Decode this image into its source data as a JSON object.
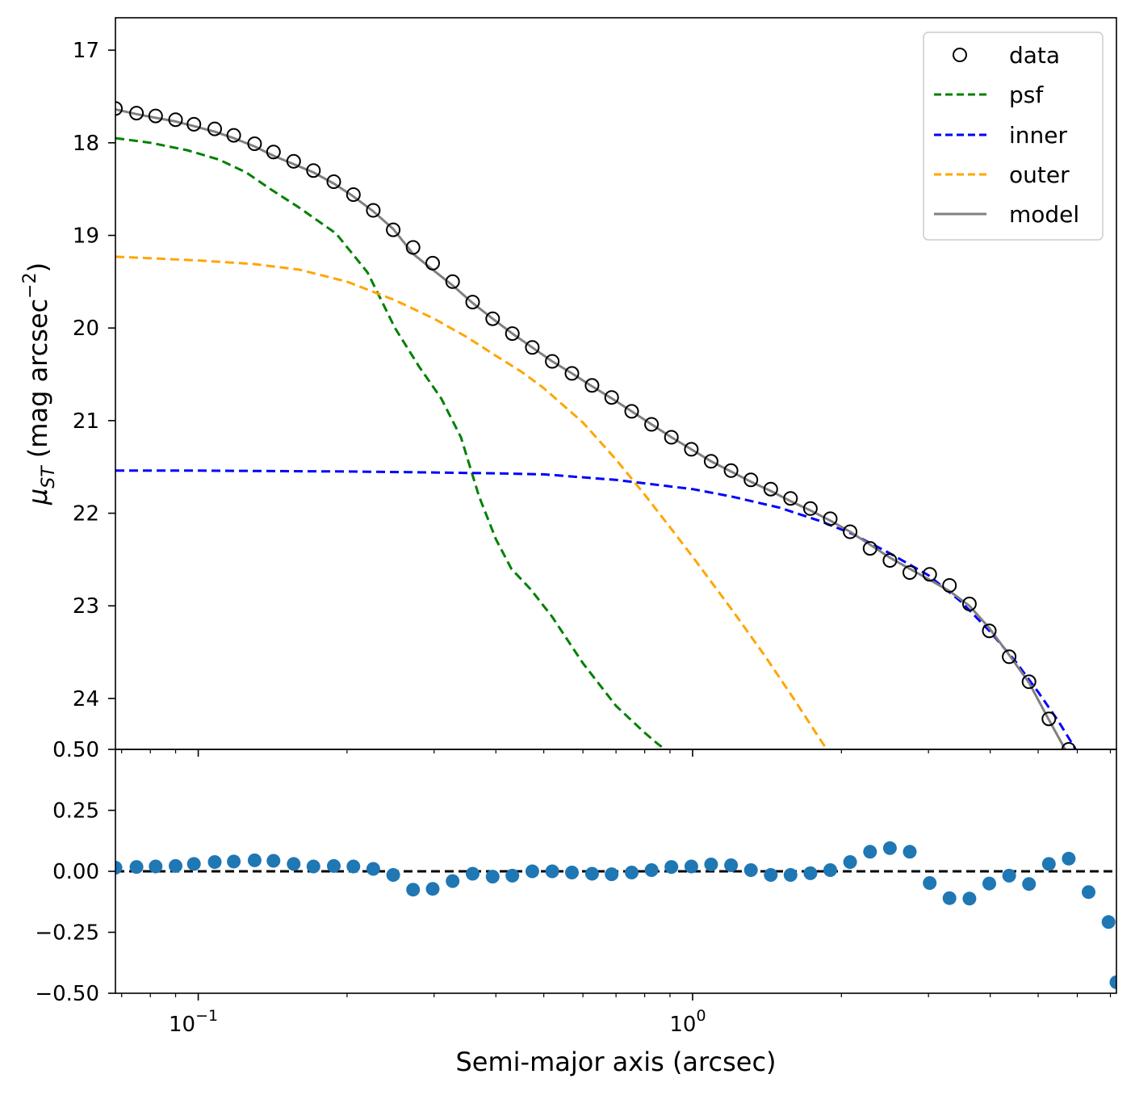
{
  "chart_data": [
    {
      "type": "line",
      "panel": "profile",
      "xscale": "log",
      "xlim": [
        0.068,
        7.2
      ],
      "ylim": [
        24.55,
        16.65
      ],
      "yticks": [
        17,
        18,
        19,
        20,
        21,
        22,
        23,
        24
      ],
      "yticks_labels": [
        "17",
        "18",
        "19",
        "20",
        "21",
        "22",
        "23",
        "24"
      ],
      "ylabel_main": "μ",
      "ylabel_sub": "ST",
      "ylabel_rest": " (mag arcsec",
      "ylabel_sup": "−2",
      "ylabel_close": ")",
      "legend_position": "top-right",
      "series": [
        {
          "name": "data",
          "label": "data",
          "style": "open-circles",
          "color": "#000000",
          "x": [
            0.068,
            0.075,
            0.082,
            0.09,
            0.098,
            0.108,
            0.118,
            0.13,
            0.142,
            0.156,
            0.171,
            0.188,
            0.206,
            0.226,
            0.248,
            0.272,
            0.298,
            0.327,
            0.359,
            0.394,
            0.432,
            0.474,
            0.52,
            0.57,
            0.626,
            0.686,
            0.753,
            0.826,
            0.906,
            0.994,
            1.09,
            1.196,
            1.312,
            1.439,
            1.578,
            1.731,
            1.899,
            2.083,
            2.285,
            2.507,
            2.75,
            3.017,
            3.309,
            3.63,
            3.982,
            4.368,
            4.792,
            5.256,
            5.766
          ],
          "y": [
            17.63,
            17.68,
            17.71,
            17.75,
            17.8,
            17.85,
            17.92,
            18.01,
            18.1,
            18.2,
            18.3,
            18.42,
            18.56,
            18.73,
            18.94,
            19.13,
            19.3,
            19.5,
            19.72,
            19.9,
            20.06,
            20.21,
            20.36,
            20.49,
            20.62,
            20.75,
            20.9,
            21.04,
            21.18,
            21.31,
            21.44,
            21.54,
            21.64,
            21.74,
            21.84,
            21.95,
            22.06,
            22.2,
            22.38,
            22.51,
            22.64,
            22.66,
            22.78,
            22.98,
            23.27,
            23.55,
            23.82,
            24.22,
            24.55
          ]
        },
        {
          "name": "psf",
          "label": "psf",
          "style": "dashed",
          "color": "#008000",
          "x": [
            0.068,
            0.08,
            0.095,
            0.11,
            0.125,
            0.14,
            0.16,
            0.19,
            0.22,
            0.25,
            0.28,
            0.31,
            0.34,
            0.37,
            0.4,
            0.43,
            0.47,
            0.52,
            0.6,
            0.7,
            0.8,
            0.85,
            0.9,
            0.94
          ],
          "y": [
            17.95,
            18.0,
            18.08,
            18.18,
            18.32,
            18.5,
            18.7,
            18.98,
            19.4,
            20.0,
            20.42,
            20.76,
            21.18,
            21.82,
            22.28,
            22.6,
            22.82,
            23.12,
            23.62,
            24.08,
            24.37,
            24.49,
            24.59,
            24.65
          ]
        },
        {
          "name": "inner",
          "label": "inner",
          "style": "dashed",
          "color": "#0000ff",
          "x": [
            0.068,
            0.1,
            0.2,
            0.3,
            0.4,
            0.5,
            0.7,
            1.0,
            1.2,
            1.5,
            1.8,
            2.1,
            2.5,
            3.0,
            3.5,
            4.0,
            4.5,
            5.0,
            5.5,
            5.8,
            6.0
          ],
          "y": [
            21.54,
            21.54,
            21.55,
            21.56,
            21.57,
            21.58,
            21.64,
            21.74,
            21.82,
            21.94,
            22.08,
            22.22,
            22.43,
            22.67,
            22.96,
            23.28,
            23.6,
            23.93,
            24.25,
            24.45,
            24.58
          ]
        },
        {
          "name": "outer",
          "label": "outer",
          "style": "dashed",
          "color": "#ffa500",
          "x": [
            0.068,
            0.1,
            0.13,
            0.16,
            0.2,
            0.25,
            0.3,
            0.35,
            0.4,
            0.45,
            0.5,
            0.6,
            0.7,
            0.8,
            0.9,
            1.0,
            1.2,
            1.4,
            1.6,
            1.8,
            1.95
          ],
          "y": [
            19.23,
            19.27,
            19.31,
            19.37,
            19.5,
            19.7,
            19.9,
            20.1,
            20.3,
            20.47,
            20.65,
            21.02,
            21.42,
            21.8,
            22.15,
            22.47,
            23.04,
            23.54,
            24.0,
            24.42,
            24.7
          ]
        },
        {
          "name": "model",
          "label": "model",
          "style": "solid",
          "color": "#808080",
          "x": [
            0.068,
            0.075,
            0.082,
            0.09,
            0.098,
            0.108,
            0.118,
            0.13,
            0.142,
            0.156,
            0.171,
            0.188,
            0.206,
            0.226,
            0.248,
            0.272,
            0.298,
            0.327,
            0.359,
            0.394,
            0.432,
            0.474,
            0.52,
            0.57,
            0.626,
            0.686,
            0.753,
            0.826,
            0.906,
            0.994,
            1.09,
            1.196,
            1.312,
            1.439,
            1.578,
            1.731,
            1.899,
            2.083,
            2.285,
            2.507,
            2.75,
            3.017,
            3.309,
            3.63,
            3.982,
            4.368,
            4.792,
            5.256,
            5.766,
            5.95
          ],
          "y": [
            17.64,
            17.69,
            17.73,
            17.77,
            17.82,
            17.88,
            17.95,
            18.04,
            18.14,
            18.23,
            18.32,
            18.44,
            18.58,
            18.74,
            18.93,
            19.2,
            19.37,
            19.54,
            19.73,
            19.9,
            20.06,
            20.21,
            20.36,
            20.49,
            20.63,
            20.76,
            20.9,
            21.04,
            21.18,
            21.31,
            21.44,
            21.55,
            21.66,
            21.76,
            21.87,
            21.97,
            22.08,
            22.2,
            22.34,
            22.48,
            22.6,
            22.72,
            22.84,
            23.0,
            23.24,
            23.53,
            23.83,
            24.23,
            24.62,
            24.75
          ]
        }
      ]
    },
    {
      "type": "scatter",
      "panel": "residuals",
      "xscale": "log",
      "xlim": [
        0.068,
        7.2
      ],
      "ylim": [
        -0.5,
        0.5
      ],
      "yticks": [
        -0.5,
        -0.25,
        0.0,
        0.25,
        0.5
      ],
      "yticks_labels": [
        "−0.50",
        "−0.25",
        "0.00",
        "0.25",
        "0.50"
      ],
      "xticks": [
        0.1,
        1.0
      ],
      "xticks_labels": [
        {
          "base": "10",
          "exp": "−1"
        },
        {
          "base": "10",
          "exp": "0"
        }
      ],
      "xlabel": "Semi-major axis (arcsec)",
      "zero_line": {
        "y": 0.0,
        "style": "dashed",
        "color": "#000000"
      },
      "color": "#1f77b4",
      "x": [
        0.068,
        0.075,
        0.082,
        0.09,
        0.098,
        0.108,
        0.118,
        0.13,
        0.142,
        0.156,
        0.171,
        0.188,
        0.206,
        0.226,
        0.248,
        0.272,
        0.298,
        0.327,
        0.359,
        0.394,
        0.432,
        0.474,
        0.52,
        0.57,
        0.626,
        0.686,
        0.753,
        0.826,
        0.906,
        0.994,
        1.09,
        1.196,
        1.312,
        1.439,
        1.578,
        1.731,
        1.899,
        2.083,
        2.285,
        2.507,
        2.75,
        3.017,
        3.309,
        3.63,
        3.982,
        4.368,
        4.792,
        5.256,
        5.766,
        6.325,
        6.94,
        7.2
      ],
      "y": [
        0.015,
        0.018,
        0.02,
        0.022,
        0.03,
        0.038,
        0.04,
        0.045,
        0.043,
        0.03,
        0.02,
        0.022,
        0.02,
        0.01,
        -0.015,
        -0.075,
        -0.072,
        -0.04,
        -0.01,
        -0.022,
        -0.018,
        0.0,
        0.0,
        -0.005,
        -0.01,
        -0.012,
        -0.005,
        0.005,
        0.018,
        0.02,
        0.028,
        0.025,
        0.005,
        -0.015,
        -0.015,
        -0.008,
        0.005,
        0.038,
        0.08,
        0.095,
        0.08,
        -0.048,
        -0.11,
        -0.112,
        -0.05,
        -0.018,
        -0.052,
        0.03,
        0.052,
        -0.085,
        -0.208,
        -0.455
      ]
    }
  ],
  "colors": {
    "data": "#000000",
    "psf": "#008000",
    "inner": "#0000ff",
    "outer": "#ffa500",
    "model": "#808080",
    "residual": "#1f77b4"
  }
}
